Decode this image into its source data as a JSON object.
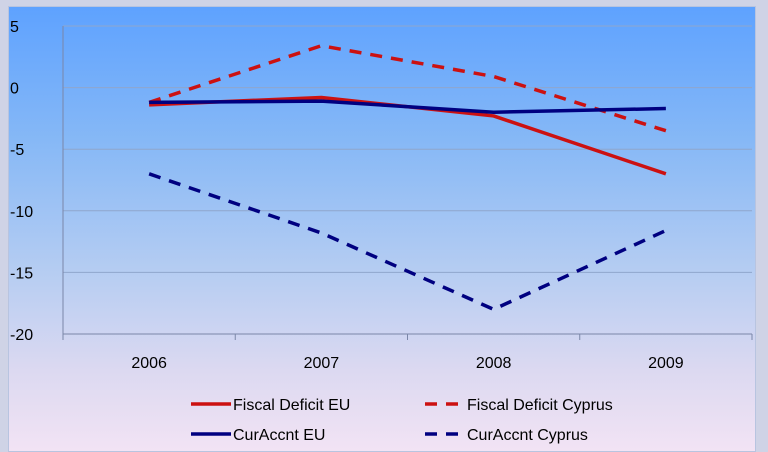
{
  "chart_data": {
    "type": "line",
    "title": "",
    "xlabel": "",
    "ylabel": "",
    "categories": [
      "2006",
      "2007",
      "2008",
      "2009"
    ],
    "ylim": [
      -20,
      5
    ],
    "yticks": [
      5,
      0,
      -5,
      -10,
      -15,
      -20
    ],
    "grid": true,
    "legend_position": "bottom",
    "series": [
      {
        "name": "Fiscal Deficit EU",
        "values": [
          -1.4,
          -0.8,
          -2.3,
          -7.0
        ],
        "color": "#cc1111",
        "dash": "solid"
      },
      {
        "name": "Fiscal Deficit Cyprus",
        "values": [
          -1.2,
          3.4,
          0.9,
          -3.5
        ],
        "color": "#cc1111",
        "dash": "dashed"
      },
      {
        "name": "CurAccnt EU",
        "values": [
          -1.2,
          -1.1,
          -2.0,
          -1.7
        ],
        "color": "#000080",
        "dash": "solid"
      },
      {
        "name": "CurAccnt Cyprus",
        "values": [
          -7.0,
          -11.8,
          -18.0,
          -11.6
        ],
        "color": "#000080",
        "dash": "dashed"
      }
    ],
    "colors": {
      "gridline": "#8fa6cc",
      "axis": "#7a86a8"
    }
  }
}
